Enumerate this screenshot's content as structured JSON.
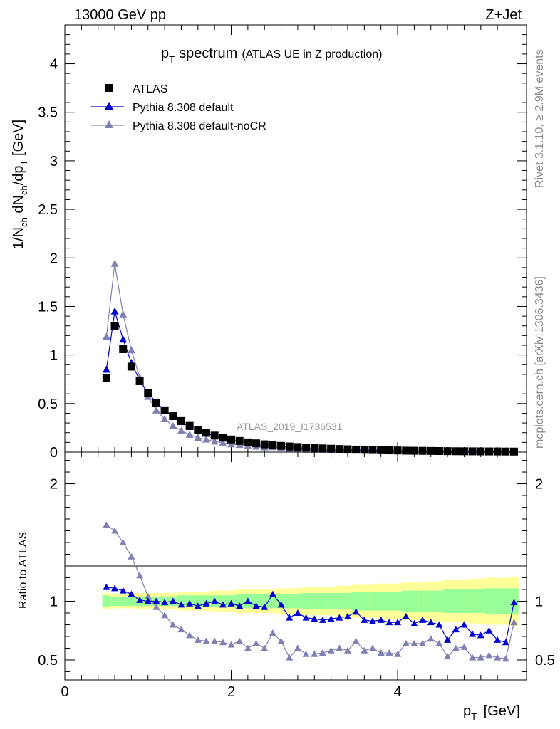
{
  "header": {
    "energy": "13000 GeV pp",
    "process": "Z+Jet"
  },
  "side_text": {
    "rivet": "Rivet 3.1.10, ≥ 2.9M events",
    "mcplots": "mcplots.cern.ch [arXiv:1306.3436]"
  },
  "analysis_id": "ATLAS_2019_I1736531",
  "colors": {
    "data": "#000000",
    "default": "#0000cc",
    "nocr": "#8080b3",
    "band_inner": "#99ff99",
    "band_outer": "#ffff99"
  },
  "chart_data": [
    {
      "type": "scatter",
      "title_main": "p",
      "title_sub": "T",
      "title_word": "spectrum",
      "title_paren": "(ATLAS UE in Z production)",
      "ylabel": "1/N_ch dN_ch/dp_T [GeV]",
      "xlim": [
        0,
        5.55
      ],
      "ylim": [
        0,
        4.4
      ],
      "yticks": [
        "0",
        "0.5",
        "1",
        "1.5",
        "2",
        "2.5",
        "3",
        "3.5",
        "4"
      ],
      "legend_position": "top-left",
      "x": [
        0.5,
        0.6,
        0.7,
        0.8,
        0.9,
        1.0,
        1.1,
        1.2,
        1.3,
        1.4,
        1.5,
        1.6,
        1.7,
        1.8,
        1.9,
        2.0,
        2.1,
        2.2,
        2.3,
        2.4,
        2.5,
        2.6,
        2.7,
        2.8,
        2.9,
        3.0,
        3.1,
        3.2,
        3.3,
        3.4,
        3.5,
        3.6,
        3.7,
        3.8,
        3.9,
        4.0,
        4.1,
        4.2,
        4.3,
        4.4,
        4.5,
        4.6,
        4.7,
        4.8,
        4.9,
        5.0,
        5.1,
        5.2,
        5.3,
        5.4
      ],
      "series": [
        {
          "name": "ATLAS",
          "values": [
            0.76,
            1.3,
            1.06,
            0.88,
            0.73,
            0.61,
            0.51,
            0.43,
            0.37,
            0.32,
            0.27,
            0.23,
            0.2,
            0.17,
            0.15,
            0.13,
            0.115,
            0.1,
            0.09,
            0.08,
            0.072,
            0.064,
            0.058,
            0.052,
            0.047,
            0.042,
            0.038,
            0.035,
            0.032,
            0.029,
            0.026,
            0.024,
            0.022,
            0.02,
            0.018,
            0.017,
            0.015,
            0.014,
            0.013,
            0.012,
            0.011,
            0.01,
            0.009,
            0.0085,
            0.008,
            0.0075,
            0.007,
            0.0065,
            0.006,
            0.0055
          ]
        },
        {
          "name": "Pythia 8.308 default",
          "values": [
            0.85,
            1.45,
            1.16,
            0.92,
            0.74,
            0.61,
            0.51,
            0.43,
            0.37,
            0.31,
            0.26,
            0.22,
            0.19,
            0.17,
            0.14,
            0.125,
            0.11,
            0.095,
            0.085,
            0.076,
            0.07,
            0.058,
            0.05,
            0.045,
            0.04,
            0.036,
            0.032,
            0.03,
            0.027,
            0.025,
            0.023,
            0.021,
            0.019,
            0.017,
            0.015,
            0.014,
            0.013,
            0.012,
            0.011,
            0.01,
            0.009,
            0.008,
            0.007,
            0.0065,
            0.006,
            0.0055,
            0.005,
            0.0045,
            0.004,
            0.0055
          ]
        },
        {
          "name": "Pythia 8.308 default-noCR",
          "values": [
            1.19,
            1.94,
            1.42,
            1.05,
            0.77,
            0.57,
            0.43,
            0.34,
            0.27,
            0.22,
            0.18,
            0.15,
            0.13,
            0.11,
            0.095,
            0.082,
            0.075,
            0.065,
            0.058,
            0.05,
            0.052,
            0.042,
            0.03,
            0.031,
            0.026,
            0.023,
            0.021,
            0.02,
            0.019,
            0.017,
            0.015,
            0.016,
            0.013,
            0.011,
            0.01,
            0.009,
            0.0085,
            0.0082,
            0.0078,
            0.0073,
            0.0065,
            0.0058,
            0.0052,
            0.0048,
            0.0044,
            0.0041,
            0.0038,
            0.0035,
            0.003,
            0.0045
          ]
        }
      ]
    },
    {
      "type": "line",
      "xlabel": "p_T [GeV]",
      "ylabel": "Ratio to ATLAS",
      "xlim": [
        0,
        5.55
      ],
      "ylim": [
        0.33,
        2.27
      ],
      "xticks": [
        "0",
        "2",
        "4"
      ],
      "yticks": [
        "0.5",
        "1",
        "2"
      ],
      "x": [
        0.5,
        0.6,
        0.7,
        0.8,
        0.9,
        1.0,
        1.1,
        1.2,
        1.3,
        1.4,
        1.5,
        1.6,
        1.7,
        1.8,
        1.9,
        2.0,
        2.1,
        2.2,
        2.3,
        2.4,
        2.5,
        2.6,
        2.7,
        2.8,
        2.9,
        3.0,
        3.1,
        3.2,
        3.3,
        3.4,
        3.5,
        3.6,
        3.7,
        3.8,
        3.9,
        4.0,
        4.1,
        4.2,
        4.3,
        4.4,
        4.5,
        4.6,
        4.7,
        4.8,
        4.9,
        5.0,
        5.1,
        5.2,
        5.3,
        5.4
      ],
      "series": [
        {
          "name": "Pythia 8.308 default",
          "values": [
            1.12,
            1.11,
            1.09,
            1.06,
            1.01,
            1.0,
            1.0,
            0.99,
            1.0,
            0.97,
            0.98,
            0.96,
            0.98,
            1.0,
            0.97,
            0.98,
            0.96,
            1.0,
            0.96,
            0.95,
            1.06,
            0.97,
            0.86,
            0.9,
            0.86,
            0.85,
            0.84,
            0.85,
            0.86,
            0.87,
            0.91,
            0.84,
            0.83,
            0.84,
            0.82,
            0.82,
            0.87,
            0.81,
            0.84,
            0.82,
            0.8,
            0.67,
            0.76,
            0.8,
            0.72,
            0.71,
            0.75,
            0.67,
            0.65,
            0.99
          ]
        },
        {
          "name": "Pythia 8.308 default-noCR",
          "values": [
            1.65,
            1.6,
            1.5,
            1.38,
            1.22,
            1.04,
            0.95,
            0.88,
            0.8,
            0.76,
            0.71,
            0.67,
            0.66,
            0.66,
            0.65,
            0.63,
            0.66,
            0.6,
            0.64,
            0.6,
            0.73,
            0.66,
            0.52,
            0.6,
            0.55,
            0.55,
            0.56,
            0.58,
            0.6,
            0.58,
            0.66,
            0.58,
            0.6,
            0.56,
            0.56,
            0.55,
            0.64,
            0.64,
            0.64,
            0.68,
            0.64,
            0.53,
            0.6,
            0.61,
            0.52,
            0.52,
            0.54,
            0.52,
            0.51,
            0.82
          ]
        }
      ],
      "band_inner_halfwidth": [
        0.05,
        0.04,
        0.04,
        0.04,
        0.04,
        0.04,
        0.04,
        0.04,
        0.04,
        0.05,
        0.05,
        0.05,
        0.05,
        0.05,
        0.05,
        0.05,
        0.06,
        0.06,
        0.06,
        0.06,
        0.06,
        0.06,
        0.06,
        0.06,
        0.07,
        0.07,
        0.07,
        0.07,
        0.07,
        0.07,
        0.08,
        0.08,
        0.08,
        0.08,
        0.08,
        0.08,
        0.09,
        0.09,
        0.09,
        0.09,
        0.09,
        0.1,
        0.1,
        0.1,
        0.1,
        0.1,
        0.11,
        0.11,
        0.11,
        0.11
      ],
      "band_outer_halfwidth": [
        0.07,
        0.06,
        0.06,
        0.06,
        0.07,
        0.07,
        0.07,
        0.07,
        0.07,
        0.08,
        0.08,
        0.08,
        0.08,
        0.09,
        0.09,
        0.09,
        0.1,
        0.1,
        0.1,
        0.1,
        0.1,
        0.11,
        0.11,
        0.11,
        0.12,
        0.12,
        0.12,
        0.12,
        0.13,
        0.13,
        0.14,
        0.14,
        0.14,
        0.15,
        0.15,
        0.15,
        0.16,
        0.16,
        0.16,
        0.17,
        0.17,
        0.18,
        0.18,
        0.18,
        0.19,
        0.19,
        0.2,
        0.2,
        0.2,
        0.21
      ]
    }
  ]
}
